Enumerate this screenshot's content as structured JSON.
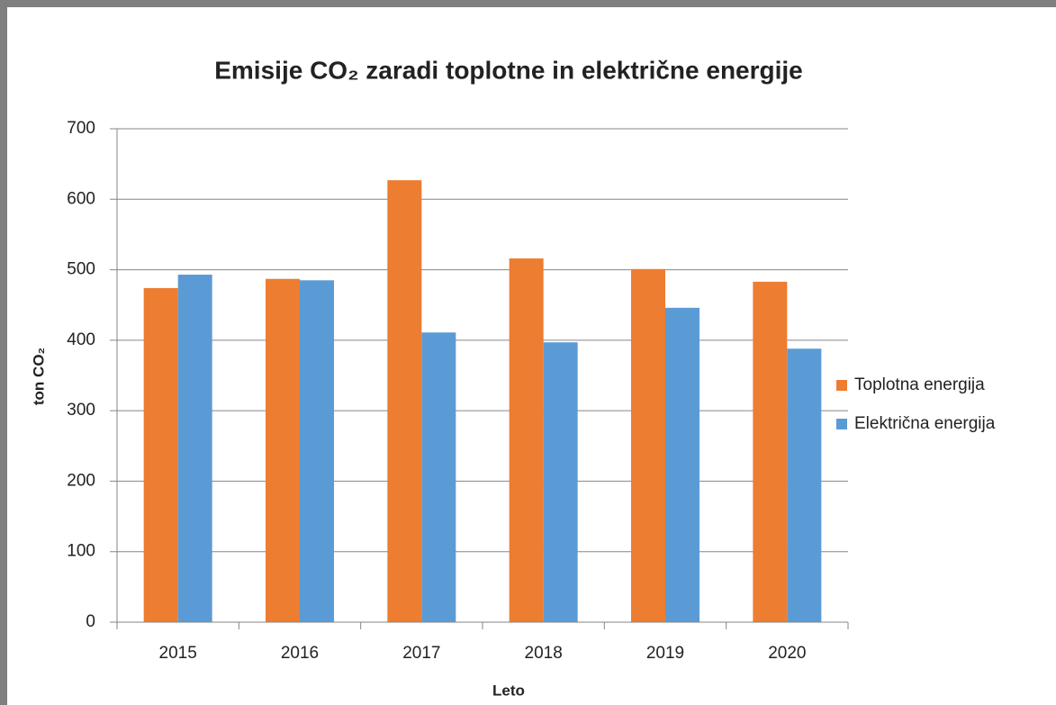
{
  "chart_data": {
    "type": "bar",
    "title": "Emisije CO₂ zaradi toplotne in električne energije",
    "x_label": "Leto",
    "y_label": "ton CO₂",
    "categories": [
      "2015",
      "2016",
      "2017",
      "2018",
      "2019",
      "2020"
    ],
    "series": [
      {
        "name": "Toplotna energija",
        "color": "#ed7d31",
        "values": [
          474,
          487,
          627,
          516,
          501,
          483
        ]
      },
      {
        "name": "Električna energija",
        "color": "#5b9bd5",
        "values": [
          493,
          485,
          411,
          397,
          446,
          388
        ]
      }
    ],
    "ylim": [
      0,
      700
    ],
    "yticks": [
      0,
      100,
      200,
      300,
      400,
      500,
      600,
      700
    ],
    "grid": true,
    "legend": "right"
  }
}
